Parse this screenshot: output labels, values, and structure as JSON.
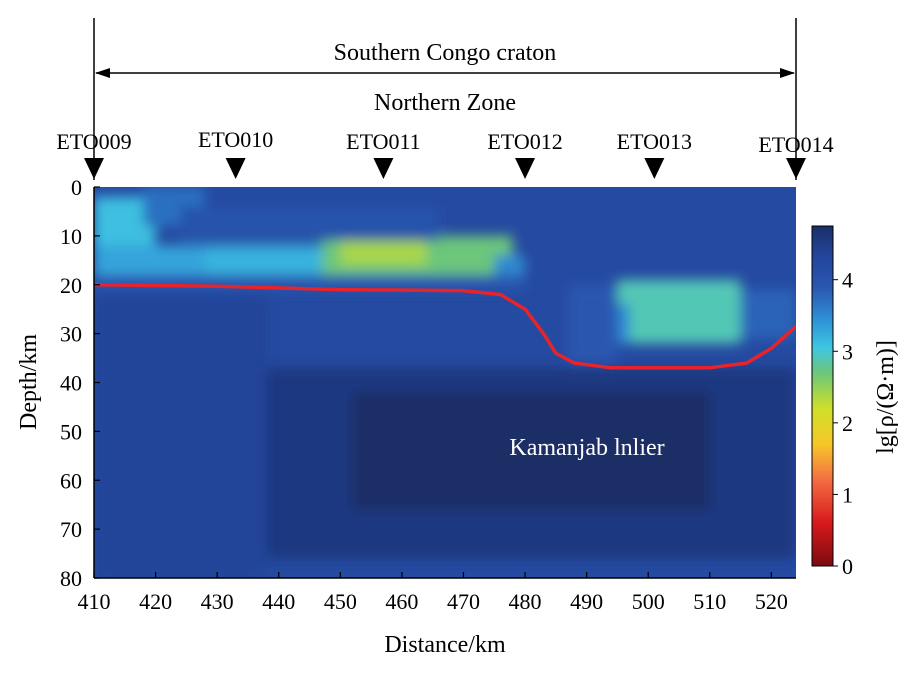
{
  "chart_data": {
    "type": "heatmap",
    "title": "",
    "xlabel": "Distance/km",
    "ylabel": "Depth/km",
    "xlim": [
      410,
      524
    ],
    "ylim": [
      0,
      80
    ],
    "y_inverted": true,
    "xticks": [
      410,
      420,
      430,
      440,
      450,
      460,
      470,
      480,
      490,
      500,
      510,
      520
    ],
    "yticks": [
      0,
      10,
      20,
      30,
      40,
      50,
      60,
      70,
      80
    ],
    "colorbar": {
      "label": "lg[ρ/(Ω·m)]",
      "range": [
        0,
        4.75
      ],
      "ticks": [
        0,
        1,
        2,
        3,
        4
      ],
      "colormap": "jet-like: dark red (0) → red → yellow → green → cyan → blue → dark navy (4.75)"
    },
    "header": {
      "region": "Southern Congo craton",
      "zone": "Northern Zone",
      "span_km": [
        410,
        524
      ]
    },
    "stations": [
      {
        "name": "ETO009",
        "x": 410
      },
      {
        "name": "ETO010",
        "x": 433
      },
      {
        "name": "ETO011",
        "x": 457
      },
      {
        "name": "ETO012",
        "x": 480
      },
      {
        "name": "ETO013",
        "x": 501
      },
      {
        "name": "ETO014",
        "x": 524
      }
    ],
    "annotations": [
      {
        "text": "Kamanjab lnlier",
        "x": 487,
        "y": 53
      }
    ],
    "boundary_line": {
      "color": "#e8232a",
      "points": [
        [
          410,
          20
        ],
        [
          430,
          20.3
        ],
        [
          450,
          21
        ],
        [
          470,
          21.2
        ],
        [
          476,
          22
        ],
        [
          480,
          25
        ],
        [
          483,
          30
        ],
        [
          485,
          34
        ],
        [
          488,
          36
        ],
        [
          494,
          37
        ],
        [
          510,
          37
        ],
        [
          516,
          36
        ],
        [
          520,
          33
        ],
        [
          524,
          28.5
        ]
      ]
    },
    "background_value": 4.2,
    "resistivity_features": [
      {
        "x0": 410,
        "x1": 420,
        "y0": 2,
        "y1": 12,
        "value": 3.1
      },
      {
        "x0": 418,
        "x1": 428,
        "y0": 0,
        "y1": 8,
        "value": 3.7
      },
      {
        "x0": 410,
        "x1": 428,
        "y0": 12,
        "y1": 18,
        "value": 3.3
      },
      {
        "x0": 428,
        "x1": 447,
        "y0": 12,
        "y1": 18,
        "value": 3.2
      },
      {
        "x0": 445,
        "x1": 458,
        "y0": 4,
        "y1": 10,
        "value": 3.3
      },
      {
        "x0": 447,
        "x1": 478,
        "y0": 10,
        "y1": 18,
        "value": 2.7
      },
      {
        "x0": 450,
        "x1": 464,
        "y0": 9,
        "y1": 16,
        "value": 2.4
      },
      {
        "x0": 475,
        "x1": 480,
        "y0": 14,
        "y1": 18,
        "value": 3.5
      },
      {
        "x0": 495,
        "x1": 515,
        "y0": 19,
        "y1": 32,
        "value": 2.9
      },
      {
        "x0": 492,
        "x1": 497,
        "y0": 24,
        "y1": 32,
        "value": 3.5
      },
      {
        "x0": 410,
        "x1": 480,
        "y0": 18,
        "y1": 21,
        "value": 3.9
      },
      {
        "x0": 487,
        "x1": 495,
        "y0": 20,
        "y1": 36,
        "value": 3.9
      },
      {
        "x0": 515,
        "x1": 524,
        "y0": 21,
        "y1": 31,
        "value": 3.8
      },
      {
        "x0": 410,
        "x1": 438,
        "y0": 22,
        "y1": 80,
        "value": 4.35
      },
      {
        "x0": 438,
        "x1": 524,
        "y0": 37,
        "y1": 76,
        "value": 4.55
      },
      {
        "x0": 452,
        "x1": 510,
        "y0": 42,
        "y1": 66,
        "value": 4.75
      },
      {
        "x0": 424,
        "x1": 466,
        "y0": 4,
        "y1": 11,
        "value": 4.0
      }
    ]
  }
}
